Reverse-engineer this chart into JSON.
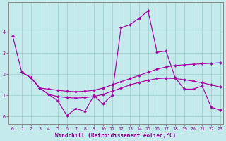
{
  "xlabel": "Windchill (Refroidissement éolien,°C)",
  "background_color": "#c4eaec",
  "line_color": "#aa00aa",
  "xlim_min": -0.5,
  "xlim_max": 23.3,
  "ylim_min": -0.35,
  "ylim_max": 5.4,
  "yticks": [
    0,
    1,
    2,
    3,
    4
  ],
  "xticks": [
    0,
    1,
    2,
    3,
    4,
    5,
    6,
    7,
    8,
    9,
    10,
    11,
    12,
    13,
    14,
    15,
    16,
    17,
    18,
    19,
    20,
    21,
    22,
    23
  ],
  "line1_x": [
    0,
    1,
    2,
    3,
    4,
    5,
    6,
    7,
    8,
    9,
    10,
    11,
    12,
    13,
    14,
    15,
    16,
    17,
    18,
    19,
    20,
    21,
    22,
    23
  ],
  "line1_y": [
    3.8,
    2.1,
    1.85,
    1.35,
    1.05,
    0.75,
    0.05,
    0.38,
    0.25,
    1.0,
    0.6,
    1.0,
    4.2,
    4.35,
    4.65,
    5.0,
    3.05,
    3.1,
    1.85,
    1.3,
    1.3,
    1.45,
    0.45,
    0.3
  ],
  "line2_x": [
    1,
    2,
    3,
    4,
    5,
    6,
    7,
    8,
    9,
    10,
    11,
    12,
    13,
    14,
    15,
    16,
    17,
    18,
    19,
    20,
    21,
    22,
    23
  ],
  "line2_y": [
    2.1,
    1.85,
    1.35,
    1.3,
    1.25,
    1.2,
    1.18,
    1.2,
    1.25,
    1.35,
    1.5,
    1.65,
    1.8,
    1.95,
    2.1,
    2.25,
    2.35,
    2.42,
    2.45,
    2.48,
    2.5,
    2.52,
    2.55
  ],
  "line3_x": [
    1,
    2,
    3,
    4,
    5,
    6,
    7,
    8,
    9,
    10,
    11,
    12,
    13,
    14,
    15,
    16,
    17,
    18,
    19,
    20,
    21,
    22,
    23
  ],
  "line3_y": [
    2.1,
    1.85,
    1.35,
    1.05,
    0.95,
    0.9,
    0.88,
    0.9,
    0.95,
    1.05,
    1.2,
    1.35,
    1.5,
    1.62,
    1.72,
    1.8,
    1.82,
    1.8,
    1.75,
    1.68,
    1.6,
    1.5,
    1.4
  ],
  "grid_color": "#99cccc",
  "grid_alpha": 1.0,
  "marker": "D",
  "markersize": 2.0,
  "linewidth": 0.85,
  "tick_fontsize": 4.8,
  "xlabel_fontsize": 5.5,
  "tick_color": "#880088",
  "spine_color": "#888888"
}
